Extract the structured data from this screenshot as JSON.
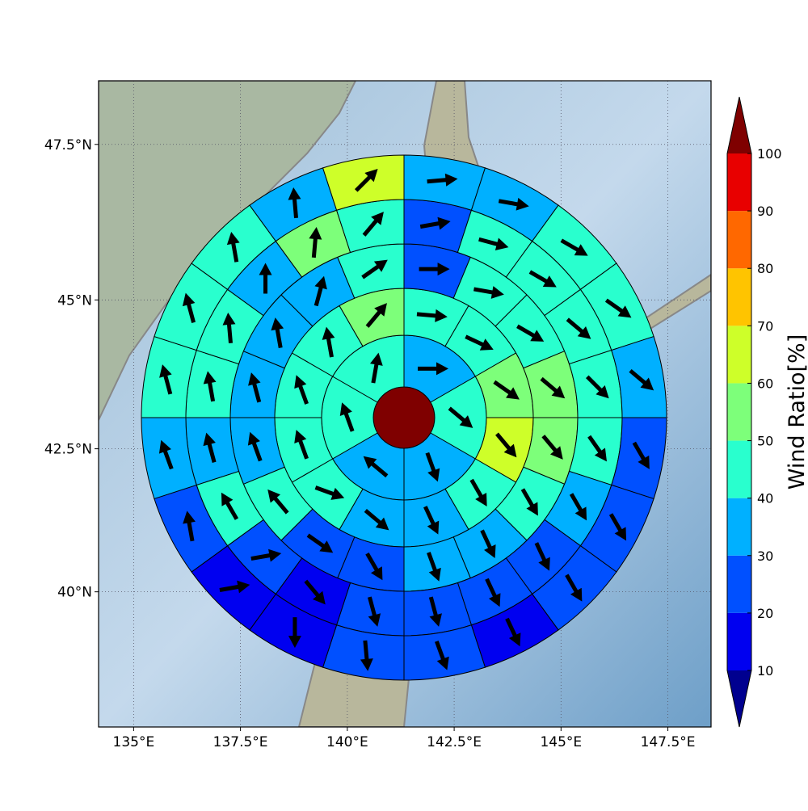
{
  "map": {
    "type": "polar-grid-map",
    "xlim": [
      134.18,
      148.51
    ],
    "ylim": [
      37.55,
      48.49
    ],
    "xticks": [
      {
        "value": 135,
        "label": "135°E"
      },
      {
        "value": 137.5,
        "label": "137.5°E"
      },
      {
        "value": 140,
        "label": "140°E"
      },
      {
        "value": 142.5,
        "label": "142.5°E"
      },
      {
        "value": 145,
        "label": "145°E"
      },
      {
        "value": 147.5,
        "label": "147.5°E"
      }
    ],
    "yticks": [
      {
        "value": 40,
        "label": "40°N"
      },
      {
        "value": 42.5,
        "label": "42.5°N"
      },
      {
        "value": 45,
        "label": "45°N"
      },
      {
        "value": 47.5,
        "label": "47.5°N"
      }
    ],
    "grid": true,
    "colorbar": {
      "label": "Wind Ratio[%]",
      "bounds": [
        10,
        20,
        30,
        40,
        50,
        60,
        70,
        80,
        90,
        100
      ],
      "colors": [
        "#0000f0",
        "#0050ff",
        "#00b0ff",
        "#29ffce",
        "#7dff7a",
        "#ceff29",
        "#ffc400",
        "#ff6800",
        "#e80000"
      ],
      "under_color": "#00008f",
      "over_color": "#7f0000"
    },
    "center_value": 100,
    "rings": [
      {
        "values": [
          35,
          45,
          35,
          35,
          45,
          45
        ],
        "directions": [
          90,
          130,
          160,
          310,
          340,
          10
        ]
      },
      {
        "values": [
          45,
          45,
          55,
          65,
          45,
          35,
          35,
          45,
          45,
          45,
          45,
          55
        ],
        "directions": [
          95,
          115,
          125,
          140,
          150,
          155,
          130,
          110,
          340,
          340,
          350,
          40
        ]
      },
      {
        "values": [
          25,
          45,
          45,
          55,
          55,
          45,
          35,
          35,
          25,
          25,
          45,
          35,
          35,
          35,
          35,
          45
        ],
        "directions": [
          90,
          100,
          120,
          130,
          140,
          150,
          155,
          160,
          150,
          125,
          320,
          340,
          345,
          350,
          15,
          55
        ]
      },
      {
        "values": [
          25,
          45,
          45,
          45,
          45,
          45,
          35,
          25,
          25,
          25,
          25,
          15,
          25,
          45,
          35,
          45,
          45,
          35,
          55,
          45
        ],
        "directions": [
          80,
          105,
          120,
          130,
          135,
          145,
          150,
          155,
          155,
          165,
          165,
          140,
          80,
          330,
          345,
          350,
          355,
          0,
          5,
          40
        ]
      },
      {
        "values": [
          35,
          35,
          45,
          45,
          35,
          25,
          25,
          25,
          15,
          25,
          25,
          15,
          15,
          25,
          35,
          45,
          45,
          45,
          35,
          65
        ],
        "directions": [
          85,
          100,
          120,
          125,
          130,
          150,
          150,
          150,
          155,
          160,
          175,
          180,
          80,
          350,
          340,
          345,
          345,
          350,
          355,
          45
        ]
      }
    ]
  }
}
